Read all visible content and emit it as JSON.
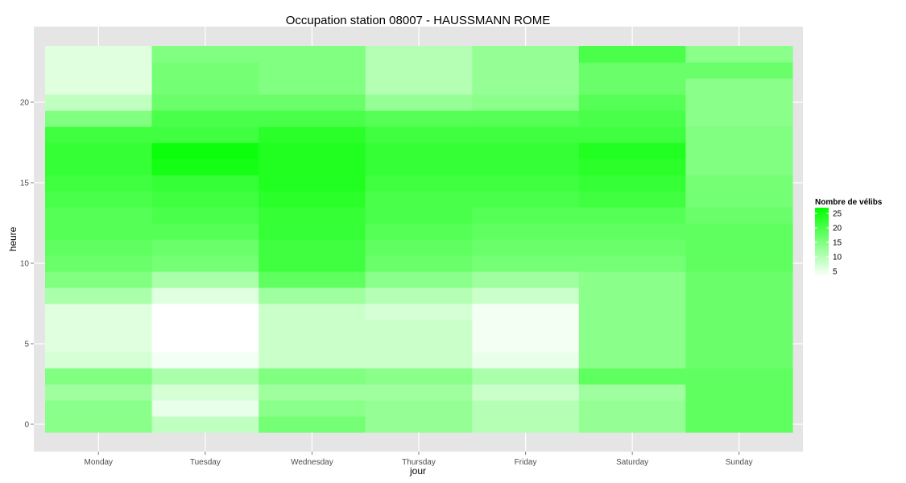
{
  "chart_data": {
    "type": "heatmap",
    "title": "Occupation station 08007 - HAUSSMANN ROME",
    "xlabel": "jour",
    "ylabel": "heure",
    "categories": [
      "Monday",
      "Tuesday",
      "Wednesday",
      "Thursday",
      "Friday",
      "Saturday",
      "Sunday"
    ],
    "y_hours": [
      0,
      1,
      2,
      3,
      4,
      5,
      6,
      7,
      8,
      9,
      10,
      11,
      12,
      13,
      14,
      15,
      16,
      17,
      18,
      19,
      20,
      21,
      22,
      23
    ],
    "y_ticks": [
      0,
      5,
      10,
      15,
      20
    ],
    "ylim": [
      -0.5,
      23.5
    ],
    "grid": true,
    "legend": {
      "title": "Nombre de vélibs",
      "placement": "right",
      "breaks": [
        25,
        20,
        15,
        10,
        5
      ],
      "range": [
        3,
        27
      ],
      "low_color": "#ffffff",
      "high_color": "#00ff00"
    },
    "values": [
      [
        14,
        9,
        16,
        13,
        10,
        13,
        18
      ],
      [
        14,
        5,
        14,
        13,
        10,
        13,
        18
      ],
      [
        12,
        7,
        12,
        12,
        8,
        12,
        18
      ],
      [
        15,
        11,
        15,
        14,
        11,
        18,
        18
      ],
      [
        7,
        4,
        8,
        8,
        5,
        14,
        17
      ],
      [
        6,
        3,
        8,
        8,
        4,
        14,
        17
      ],
      [
        6,
        3,
        8,
        8,
        4,
        14,
        17
      ],
      [
        6,
        3,
        8,
        7,
        4,
        14,
        17
      ],
      [
        11,
        6,
        12,
        10,
        8,
        14,
        17
      ],
      [
        15,
        11,
        18,
        14,
        12,
        14,
        17
      ],
      [
        17,
        16,
        21,
        17,
        16,
        16,
        18
      ],
      [
        18,
        17,
        21,
        18,
        17,
        17,
        18
      ],
      [
        19,
        19,
        22,
        19,
        18,
        18,
        18
      ],
      [
        19,
        20,
        22,
        20,
        19,
        19,
        17
      ],
      [
        20,
        21,
        23,
        20,
        20,
        21,
        16
      ],
      [
        21,
        22,
        24,
        21,
        21,
        22,
        16
      ],
      [
        22,
        25,
        24,
        22,
        22,
        23,
        15
      ],
      [
        22,
        26,
        24,
        22,
        22,
        24,
        15
      ],
      [
        21,
        21,
        23,
        21,
        21,
        21,
        15
      ],
      [
        15,
        20,
        20,
        19,
        19,
        20,
        14
      ],
      [
        9,
        17,
        17,
        13,
        14,
        19,
        14
      ],
      [
        6,
        16,
        15,
        10,
        13,
        17,
        14
      ],
      [
        6,
        16,
        15,
        10,
        13,
        17,
        17
      ],
      [
        6,
        15,
        15,
        10,
        13,
        20,
        14
      ]
    ]
  }
}
